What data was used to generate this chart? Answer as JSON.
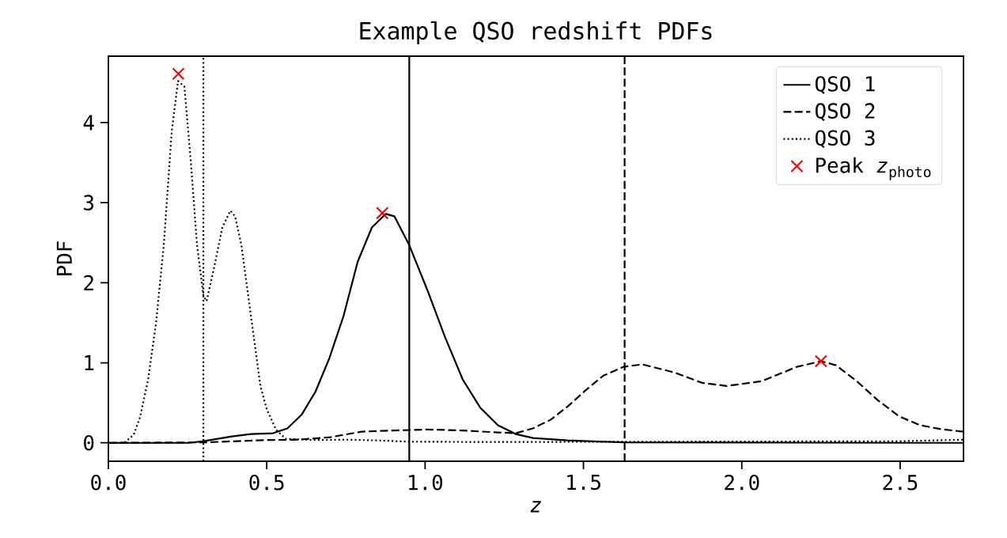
{
  "chart_data": {
    "type": "line",
    "title": "Example QSO redshift PDFs",
    "xlabel": "*z*",
    "ylabel": "PDF",
    "xlim": [
      0,
      2.7
    ],
    "ylim": [
      -0.23,
      4.83
    ],
    "xticks": [
      {
        "value": 0,
        "label": "0.0"
      },
      {
        "value": 0.5,
        "label": "0.5"
      },
      {
        "value": 1,
        "label": "1.0"
      },
      {
        "value": 1.5,
        "label": "1.5"
      },
      {
        "value": 2,
        "label": "2.0"
      },
      {
        "value": 2.5,
        "label": "2.5"
      }
    ],
    "yticks": [
      0,
      1,
      2,
      3,
      4
    ],
    "grid": false,
    "legend": "top right",
    "marker": "none",
    "series": [
      {
        "name": "QSO 1",
        "color": "#000000",
        "line_style": "solid",
        "x": [
          0,
          0.25,
          0.3,
          0.39,
          0.45,
          0.52,
          0.565,
          0.61,
          0.654,
          0.698,
          0.743,
          0.787,
          0.832,
          0.876,
          0.903,
          0.95,
          1.008,
          1.063,
          1.119,
          1.174,
          1.23,
          1.286,
          1.341,
          1.45,
          1.63,
          2.7
        ],
        "values": [
          0,
          0,
          0.02,
          0.08,
          0.11,
          0.12,
          0.18,
          0.35,
          0.64,
          1.06,
          1.59,
          2.26,
          2.69,
          2.86,
          2.83,
          2.47,
          1.9,
          1.32,
          0.79,
          0.44,
          0.22,
          0.11,
          0.06,
          0.03,
          0.005,
          0
        ]
      },
      {
        "name": "QSO 2",
        "color": "#000000",
        "line_style": "dashed",
        "x": [
          0,
          0.3,
          0.5,
          0.6,
          0.7,
          0.8,
          0.9,
          0.95,
          1.008,
          1.119,
          1.23,
          1.286,
          1.34,
          1.397,
          1.452,
          1.508,
          1.563,
          1.627,
          1.686,
          1.786,
          1.874,
          1.952,
          2.063,
          2.174,
          2.25,
          2.297,
          2.363,
          2.43,
          2.497,
          2.563,
          2.63,
          2.7
        ],
        "values": [
          0,
          0.005,
          0.035,
          0.04,
          0.07,
          0.14,
          0.155,
          0.16,
          0.167,
          0.154,
          0.13,
          0.12,
          0.18,
          0.29,
          0.46,
          0.66,
          0.84,
          0.95,
          0.98,
          0.88,
          0.75,
          0.71,
          0.77,
          0.95,
          1.02,
          0.97,
          0.77,
          0.53,
          0.33,
          0.22,
          0.17,
          0.14
        ]
      },
      {
        "name": "QSO 3",
        "color": "#000000",
        "line_style": "dotted",
        "x": [
          0,
          0.05,
          0.08,
          0.1,
          0.125,
          0.15,
          0.175,
          0.2,
          0.22,
          0.24,
          0.26,
          0.28,
          0.3,
          0.31,
          0.33,
          0.36,
          0.385,
          0.4,
          0.42,
          0.45,
          0.48,
          0.5,
          0.53,
          0.56,
          0.65,
          0.75,
          0.85,
          0.95,
          1.2,
          2.5,
          2.7
        ],
        "values": [
          0,
          0,
          0.1,
          0.32,
          0.78,
          1.48,
          2.47,
          3.89,
          4.52,
          4.45,
          3.53,
          2.47,
          1.84,
          1.77,
          2.12,
          2.69,
          2.9,
          2.83,
          2.47,
          1.59,
          0.71,
          0.42,
          0.16,
          0.05,
          0.035,
          0.04,
          0.03,
          0.015,
          0.01,
          0.02,
          0.04
        ]
      },
      {
        "name": "Peak *z*$_{photo}$",
        "type": "scatter",
        "marker": "cross",
        "color": "#ff0000",
        "x": [
          0.221,
          0.865,
          2.25
        ],
        "values": [
          4.61,
          2.87,
          1.02
        ]
      }
    ],
    "ref_lines": [
      {
        "axis": "x",
        "value": 0.3,
        "color": "#000000",
        "line_style": "dotted"
      },
      {
        "axis": "x",
        "value": 0.95,
        "color": "#000000",
        "line_style": "solid"
      },
      {
        "axis": "x",
        "value": 1.63,
        "color": "#000000",
        "line_style": "dashed"
      }
    ]
  }
}
